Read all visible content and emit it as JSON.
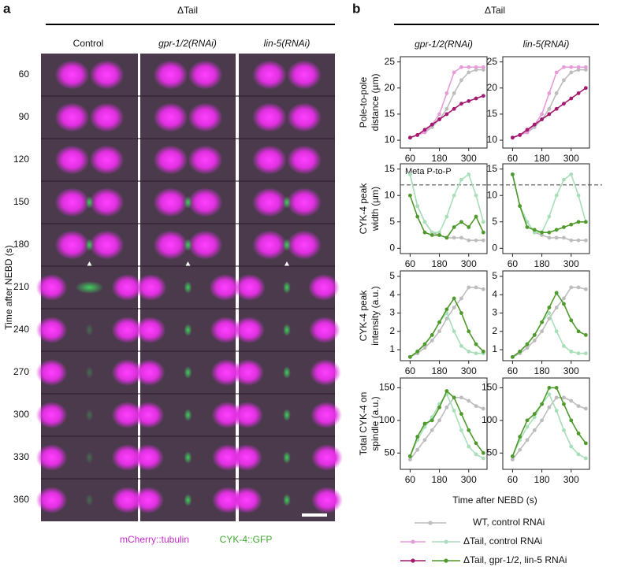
{
  "panel_a": {
    "label": "a",
    "header": "ΔTail",
    "columns": [
      "Control",
      "gpr-1/2(RNAi)",
      "lin-5(RNAi)"
    ],
    "row_labels": [
      "60",
      "90",
      "120",
      "150",
      "180",
      "210",
      "240",
      "270",
      "300",
      "330",
      "360"
    ],
    "y_label": "Time after NEBD (s)",
    "channels": [
      "mCherry::tubulin",
      "CYK-4::GFP"
    ]
  },
  "panel_b": {
    "label": "b",
    "header": "ΔTail",
    "x_label": "Time after NEBD (s)"
  },
  "chart_data": [
    {
      "type": "line",
      "title": "gpr-1/2(RNAi)",
      "y_label": [
        "Pole-to-pole",
        "distance (µm)"
      ],
      "x": [
        60,
        90,
        120,
        150,
        180,
        210,
        240,
        270,
        300,
        330,
        360
      ],
      "xlim": [
        20,
        375
      ],
      "xticks": [
        60,
        180,
        300
      ],
      "ylim": [
        8.5,
        26
      ],
      "yticks": [
        10,
        15,
        20,
        25
      ],
      "series": [
        {
          "name": "WT, control RNAi",
          "color": "#bdbdbd",
          "values": [
            10.5,
            11,
            11.5,
            12.5,
            14,
            16,
            19,
            21.5,
            23,
            23.5,
            23.5
          ]
        },
        {
          "name": "ΔTail, control RNAi",
          "color": "#e79bd8",
          "values": [
            10.5,
            11,
            11.5,
            13,
            15,
            19,
            23,
            24,
            24,
            24,
            24
          ]
        },
        {
          "name": "ΔTail, gpr-1/2, lin-5 RNAi",
          "color": "#a3196f",
          "values": [
            10.5,
            11,
            12,
            13,
            14,
            15,
            16,
            17,
            17.5,
            18,
            18.5
          ]
        }
      ]
    },
    {
      "type": "line",
      "title": "lin-5(RNAi)",
      "x": [
        60,
        90,
        120,
        150,
        180,
        210,
        240,
        270,
        300,
        330,
        360
      ],
      "xlim": [
        20,
        375
      ],
      "xticks": [
        60,
        180,
        300
      ],
      "ylim": [
        8.5,
        26
      ],
      "yticks": [
        10,
        15,
        20,
        25
      ],
      "series": [
        {
          "name": "WT, control RNAi",
          "color": "#bdbdbd",
          "values": [
            10.5,
            11,
            11.5,
            12.5,
            14,
            16,
            19,
            21.5,
            23,
            23.5,
            23.5
          ]
        },
        {
          "name": "ΔTail, control RNAi",
          "color": "#e79bd8",
          "values": [
            10.5,
            11,
            11.5,
            13,
            15,
            19,
            23,
            24,
            24,
            24,
            24
          ]
        },
        {
          "name": "ΔTail, gpr-1/2, lin-5 RNAi",
          "color": "#a3196f",
          "values": [
            10.5,
            11,
            12,
            13,
            14,
            15,
            16,
            17,
            18,
            19,
            20
          ]
        }
      ]
    },
    {
      "type": "line",
      "y_label": [
        "CYK-4 peak",
        "width (µm)"
      ],
      "x": [
        60,
        90,
        120,
        150,
        180,
        210,
        240,
        270,
        300,
        330,
        360
      ],
      "xlim": [
        20,
        375
      ],
      "xticks": [
        60,
        180,
        300
      ],
      "ylim": [
        -1,
        16
      ],
      "yticks": [
        0,
        5,
        10,
        15
      ],
      "hline": 12,
      "annotation": "Meta P-to-P",
      "series": [
        {
          "name": "WT, control RNAi",
          "color": "#bdbdbd",
          "values": [
            14,
            8,
            5,
            3,
            2.5,
            2,
            2,
            2,
            1.5,
            1.5,
            1.5
          ]
        },
        {
          "name": "ΔTail, control RNAi",
          "color": "#a8dfb9",
          "values": [
            14,
            8,
            5,
            3,
            3,
            6,
            10,
            13,
            14,
            10,
            5
          ]
        },
        {
          "name": "ΔTail, gpr-1/2, lin-5 RNAi",
          "color": "#4f9a2c",
          "values": [
            10,
            6,
            3,
            2.5,
            2.5,
            2,
            4,
            5,
            4,
            6,
            3
          ]
        }
      ]
    },
    {
      "type": "line",
      "x": [
        60,
        90,
        120,
        150,
        180,
        210,
        240,
        270,
        300,
        330,
        360
      ],
      "xlim": [
        20,
        375
      ],
      "xticks": [
        60,
        180,
        300
      ],
      "ylim": [
        -1,
        16
      ],
      "yticks": [
        0,
        5,
        10,
        15
      ],
      "hline": 12,
      "series": [
        {
          "name": "WT, control RNAi",
          "color": "#bdbdbd",
          "values": [
            14,
            8,
            5,
            3,
            2.5,
            2,
            2,
            2,
            1.5,
            1.5,
            1.5
          ]
        },
        {
          "name": "ΔTail, control RNAi",
          "color": "#a8dfb9",
          "values": [
            14,
            8,
            5,
            3,
            3,
            6,
            10,
            13,
            14,
            10,
            5
          ]
        },
        {
          "name": "ΔTail, gpr-1/2, lin-5 RNAi",
          "color": "#4f9a2c",
          "values": [
            14,
            8,
            4,
            3.5,
            3,
            3,
            3.5,
            4,
            4.5,
            5,
            5
          ]
        }
      ]
    },
    {
      "type": "line",
      "y_label": [
        "CYK-4 peak",
        "intensity (a.u.)"
      ],
      "x": [
        60,
        90,
        120,
        150,
        180,
        210,
        240,
        270,
        300,
        330,
        360
      ],
      "xlim": [
        20,
        375
      ],
      "xticks": [
        60,
        180,
        300
      ],
      "ylim": [
        0.4,
        5.3
      ],
      "yticks": [
        1,
        2,
        3,
        4,
        5
      ],
      "series": [
        {
          "name": "WT, control RNAi",
          "color": "#bdbdbd",
          "values": [
            0.6,
            0.8,
            1.1,
            1.5,
            2,
            2.7,
            3.3,
            3.8,
            4.4,
            4.4,
            4.3
          ]
        },
        {
          "name": "ΔTail, control RNAi",
          "color": "#a8dfb9",
          "values": [
            0.6,
            0.9,
            1.3,
            1.8,
            2.5,
            3,
            2,
            1.2,
            0.9,
            0.8,
            0.8
          ]
        },
        {
          "name": "ΔTail, gpr-1/2, lin-5 RNAi",
          "color": "#4f9a2c",
          "values": [
            0.6,
            0.9,
            1.3,
            1.8,
            2.5,
            3.2,
            3.8,
            3,
            2,
            1.3,
            0.9
          ]
        }
      ]
    },
    {
      "type": "line",
      "x": [
        60,
        90,
        120,
        150,
        180,
        210,
        240,
        270,
        300,
        330,
        360
      ],
      "xlim": [
        20,
        375
      ],
      "xticks": [
        60,
        180,
        300
      ],
      "ylim": [
        0.4,
        5.3
      ],
      "yticks": [
        1,
        2,
        3,
        4,
        5
      ],
      "series": [
        {
          "name": "WT, control RNAi",
          "color": "#bdbdbd",
          "values": [
            0.6,
            0.8,
            1.1,
            1.5,
            2,
            2.7,
            3.3,
            3.8,
            4.4,
            4.4,
            4.3
          ]
        },
        {
          "name": "ΔTail, control RNAi",
          "color": "#a8dfb9",
          "values": [
            0.6,
            0.9,
            1.3,
            1.8,
            2.5,
            3,
            2,
            1.2,
            0.9,
            0.8,
            0.8
          ]
        },
        {
          "name": "ΔTail, gpr-1/2, lin-5 RNAi",
          "color": "#4f9a2c",
          "values": [
            0.6,
            0.9,
            1.3,
            1.8,
            2.5,
            3.3,
            4.1,
            3.5,
            2.6,
            2,
            1.8
          ]
        }
      ]
    },
    {
      "type": "line",
      "y_label": [
        "Total CYK-4 on",
        "spindle (a.u.)"
      ],
      "x": [
        60,
        90,
        120,
        150,
        180,
        210,
        240,
        270,
        300,
        330,
        360
      ],
      "xlim": [
        20,
        375
      ],
      "xticks": [
        60,
        180,
        300
      ],
      "ylim": [
        25,
        165
      ],
      "yticks": [
        50,
        100,
        150
      ],
      "series": [
        {
          "name": "WT, control RNAi",
          "color": "#bdbdbd",
          "values": [
            40,
            55,
            70,
            85,
            100,
            120,
            135,
            135,
            130,
            122,
            118
          ]
        },
        {
          "name": "ΔTail, control RNAi",
          "color": "#a8dfb9",
          "values": [
            45,
            70,
            90,
            105,
            125,
            140,
            115,
            85,
            60,
            48,
            42
          ]
        },
        {
          "name": "ΔTail, gpr-1/2, lin-5 RNAi",
          "color": "#4f9a2c",
          "values": [
            45,
            75,
            95,
            100,
            120,
            145,
            135,
            110,
            85,
            65,
            50
          ]
        }
      ]
    },
    {
      "type": "line",
      "x": [
        60,
        90,
        120,
        150,
        180,
        210,
        240,
        270,
        300,
        330,
        360
      ],
      "xlim": [
        20,
        375
      ],
      "xticks": [
        60,
        180,
        300
      ],
      "ylim": [
        25,
        165
      ],
      "yticks": [
        50,
        100,
        150
      ],
      "series": [
        {
          "name": "WT, control RNAi",
          "color": "#bdbdbd",
          "values": [
            40,
            55,
            70,
            85,
            100,
            120,
            135,
            135,
            130,
            122,
            118
          ]
        },
        {
          "name": "ΔTail, control RNAi",
          "color": "#a8dfb9",
          "values": [
            45,
            70,
            90,
            105,
            125,
            140,
            115,
            85,
            60,
            48,
            42
          ]
        },
        {
          "name": "ΔTail, gpr-1/2, lin-5 RNAi",
          "color": "#4f9a2c",
          "values": [
            45,
            75,
            100,
            110,
            125,
            150,
            150,
            125,
            100,
            80,
            65
          ]
        }
      ]
    }
  ]
}
